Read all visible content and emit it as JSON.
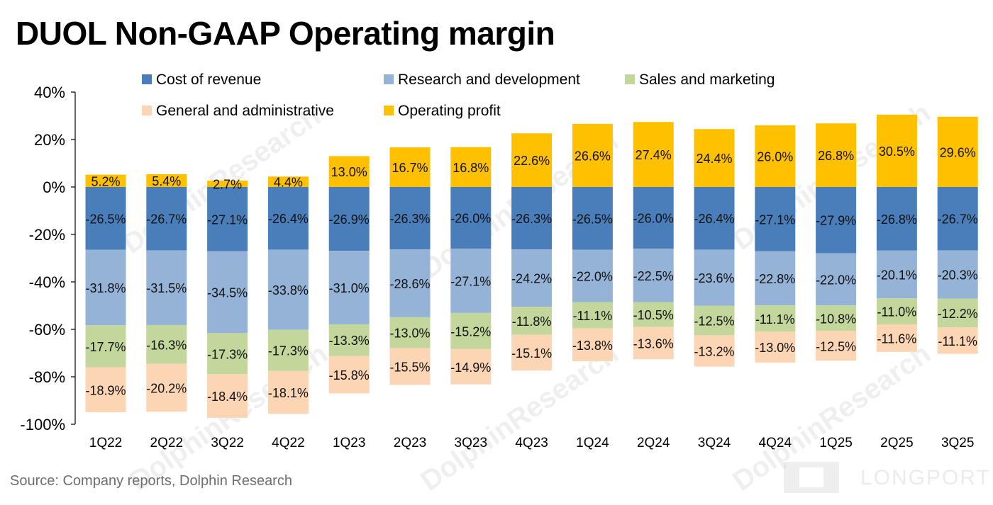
{
  "title": "DUOL Non-GAAP Operating margin",
  "source": "Source:  Company reports, Dolphin Research",
  "watermark": "DolphinResearch",
  "brand": "LONGPORT",
  "chart_data": {
    "type": "bar",
    "stacked": true,
    "categories": [
      "1Q22",
      "2Q22",
      "3Q22",
      "4Q22",
      "1Q23",
      "2Q23",
      "3Q23",
      "4Q23",
      "1Q24",
      "2Q24",
      "3Q24",
      "4Q24",
      "1Q25",
      "2Q25",
      "3Q25"
    ],
    "ylim": [
      -100,
      40
    ],
    "yticks": [
      40,
      20,
      0,
      -20,
      -40,
      -60,
      -80,
      -100
    ],
    "ytick_labels": [
      "40%",
      "20%",
      "0%",
      "-20%",
      "-40%",
      "-60%",
      "-80%",
      "-100%"
    ],
    "legend_position": "top",
    "series": [
      {
        "name": "Cost of revenue",
        "color": "#4a7ebb",
        "values": [
          -26.5,
          -26.7,
          -27.1,
          -26.4,
          -26.9,
          -26.3,
          -26.0,
          -26.3,
          -26.5,
          -26.0,
          -26.4,
          -27.1,
          -27.9,
          -26.8,
          -26.7
        ],
        "labels": [
          "-26.5%",
          "-26.7%",
          "-27.1%",
          "-26.4%",
          "-26.9%",
          "-26.3%",
          "-26.0%",
          "-26.3%",
          "-26.5%",
          "-26.0%",
          "-26.4%",
          "-27.1%",
          "-27.9%",
          "-26.8%",
          "-26.7%"
        ]
      },
      {
        "name": "Research and development",
        "color": "#95b3d7",
        "values": [
          -31.8,
          -31.5,
          -34.5,
          -33.8,
          -31.0,
          -28.6,
          -27.1,
          -24.2,
          -22.0,
          -22.5,
          -23.6,
          -22.8,
          -22.0,
          -20.1,
          -20.3
        ],
        "labels": [
          "-31.8%",
          "-31.5%",
          "-34.5%",
          "-33.8%",
          "-31.0%",
          "-28.6%",
          "-27.1%",
          "-24.2%",
          "-22.0%",
          "-22.5%",
          "-23.6%",
          "-22.8%",
          "-22.0%",
          "-20.1%",
          "-20.3%"
        ]
      },
      {
        "name": "Sales and marketing",
        "color": "#c3d69b",
        "values": [
          -17.7,
          -16.3,
          -17.3,
          -17.3,
          -13.3,
          -13.0,
          -15.2,
          -11.8,
          -11.1,
          -10.5,
          -12.5,
          -11.1,
          -10.8,
          -11.0,
          -12.2
        ],
        "labels": [
          "-17.7%",
          "-16.3%",
          "-17.3%",
          "-17.3%",
          "-13.3%",
          "-13.0%",
          "-15.2%",
          "-11.8%",
          "-11.1%",
          "-10.5%",
          "-12.5%",
          "-11.1%",
          "-10.8%",
          "-11.0%",
          "-12.2%"
        ]
      },
      {
        "name": "General and administrative",
        "color": "#fcd5b5",
        "values": [
          -18.9,
          -20.2,
          -18.4,
          -18.1,
          -15.8,
          -15.5,
          -14.9,
          -15.1,
          -13.8,
          -13.6,
          -13.2,
          -13.0,
          -12.5,
          -11.6,
          -11.1
        ],
        "labels": [
          "-18.9%",
          "-20.2%",
          "-18.4%",
          "-18.1%",
          "-15.8%",
          "-15.5%",
          "-14.9%",
          "-15.1%",
          "-13.8%",
          "-13.6%",
          "-13.2%",
          "-13.0%",
          "-12.5%",
          "-11.6%",
          "-11.1%"
        ]
      },
      {
        "name": "Operating profit",
        "color": "#ffc000",
        "values": [
          5.2,
          5.4,
          2.7,
          4.4,
          13.0,
          16.7,
          16.8,
          22.6,
          26.6,
          27.4,
          24.4,
          26.0,
          26.8,
          30.5,
          29.6
        ],
        "labels": [
          "5.2%",
          "5.4%",
          "2.7%",
          "4.4%",
          "13.0%",
          "16.7%",
          "16.8%",
          "22.6%",
          "26.6%",
          "27.4%",
          "24.4%",
          "26.0%",
          "26.8%",
          "30.5%",
          "29.6%"
        ]
      }
    ]
  }
}
